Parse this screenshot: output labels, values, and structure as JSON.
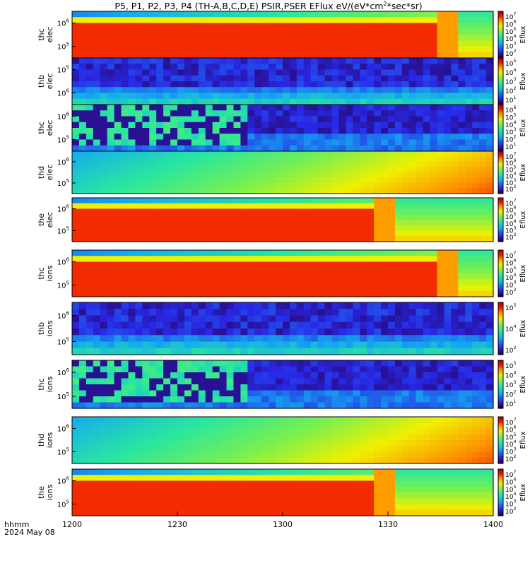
{
  "title": "P5, P1, P2, P3, P4 (TH-A,B,C,D,E) PSIR,PSER EFlux eV/(eV*cm",
  "title_sup": "2",
  "title_tail": "*sec*sr)",
  "footer": {
    "hhmm": "hhmm",
    "date": "2024 May 08"
  },
  "chart_data": {
    "type": "heatmap",
    "xlabel": "hhmm",
    "x_ticks": [
      "1200",
      "1230",
      "1300",
      "1330",
      "1400"
    ],
    "x_range": [
      "12:00",
      "14:00"
    ],
    "panels": [
      {
        "label": [
          "thc",
          "elec"
        ],
        "y_ticks": [
          "10^6",
          "10^5"
        ],
        "cbar_label": "Eflux",
        "cbar_ticks": [
          "10^7",
          "10^6",
          "10^5",
          "10^4",
          "10^3",
          "10^2"
        ],
        "cmap": "rainbow",
        "level_profile": "high_then_low",
        "step_at": 0.87
      },
      {
        "label": [
          "thb",
          "elec"
        ],
        "y_ticks": [
          "10^5",
          "10^6"
        ],
        "cbar_label": "Eflux",
        "cbar_ticks": [
          "10^5",
          "10^4",
          "10^3",
          "10^2",
          "10^1"
        ],
        "cmap": "rainbow",
        "level_profile": "noise_blue"
      },
      {
        "label": [
          "thc",
          "elec"
        ],
        "y_ticks": [
          "10^6",
          "10^5"
        ],
        "cbar_label": "Eflux",
        "cbar_ticks": [
          "10^6",
          "10^5",
          "10^4",
          "10^3",
          "10^2",
          "10^1"
        ],
        "cmap": "rainbow",
        "level_profile": "noise_with_block",
        "step_at": 0.42
      },
      {
        "label": [
          "thd",
          "elec"
        ],
        "y_ticks": [
          "10^6",
          "10^5"
        ],
        "cbar_label": "Eflux",
        "cbar_ticks": [
          "10^7",
          "10^6",
          "10^5",
          "10^4",
          "10^3",
          "10^2"
        ],
        "cmap": "rainbow",
        "level_profile": "rising"
      },
      {
        "label": [
          "the",
          "elec"
        ],
        "y_ticks": [
          "10^6",
          "10^5"
        ],
        "cbar_label": "Eflux",
        "cbar_ticks": [
          "10^7",
          "10^6",
          "10^5",
          "10^4",
          "10^3",
          "10^2"
        ],
        "cmap": "rainbow",
        "level_profile": "high_then_low",
        "step_at": 0.72
      },
      {
        "label": [
          "thc",
          "ions"
        ],
        "y_ticks": [
          "10^6",
          "10^5"
        ],
        "cbar_label": "Eflux",
        "cbar_ticks": [
          "10^7",
          "10^6",
          "10^5",
          "10^4",
          "10^3",
          "10^2"
        ],
        "cmap": "rainbow",
        "level_profile": "high_then_low",
        "step_at": 0.87
      },
      {
        "label": [
          "thb",
          "ions"
        ],
        "y_ticks": [
          "10^6",
          "10^5"
        ],
        "cbar_label": "Eflux",
        "cbar_ticks": [
          "10^5",
          "10^4",
          "10^2"
        ],
        "cmap": "rainbow",
        "level_profile": "noise_blue"
      },
      {
        "label": [
          "thc",
          "ions"
        ],
        "y_ticks": [
          "10^6",
          "10^5"
        ],
        "cbar_label": "Eflux",
        "cbar_ticks": [
          "10^5",
          "10^4",
          "10^3",
          "10^2",
          "10^1"
        ],
        "cmap": "rainbow",
        "level_profile": "noise_with_block",
        "step_at": 0.42
      },
      {
        "label": [
          "thd",
          "ions"
        ],
        "y_ticks": [
          "10^6",
          "10^5"
        ],
        "cbar_label": "Eflux",
        "cbar_ticks": [
          "10^7",
          "10^6",
          "10^5",
          "10^4",
          "10^3",
          "10^2"
        ],
        "cmap": "rainbow",
        "level_profile": "rising"
      },
      {
        "label": [
          "the",
          "ions"
        ],
        "y_ticks": [
          "10^6",
          "10^5"
        ],
        "cbar_label": "Eflux",
        "cbar_ticks": [
          "10^7",
          "10^6",
          "10^5",
          "10^4",
          "10^3",
          "10^2"
        ],
        "cmap": "rainbow",
        "level_profile": "high_then_low",
        "step_at": 0.72
      }
    ]
  }
}
